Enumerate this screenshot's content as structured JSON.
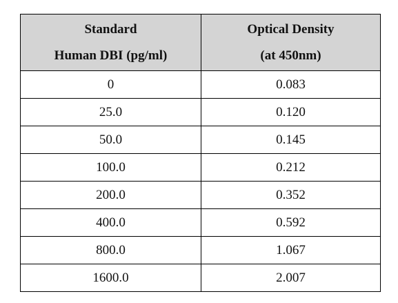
{
  "table": {
    "headers": [
      {
        "line1": "Standard",
        "line2": "Human DBI (pg/ml)"
      },
      {
        "line1": "Optical Density",
        "line2": "(at 450nm)"
      }
    ],
    "rows": [
      [
        "0",
        "0.083"
      ],
      [
        "25.0",
        "0.120"
      ],
      [
        "50.0",
        "0.145"
      ],
      [
        "100.0",
        "0.212"
      ],
      [
        "200.0",
        "0.352"
      ],
      [
        "400.0",
        "0.592"
      ],
      [
        "800.0",
        "1.067"
      ],
      [
        "1600.0",
        "2.007"
      ]
    ]
  }
}
